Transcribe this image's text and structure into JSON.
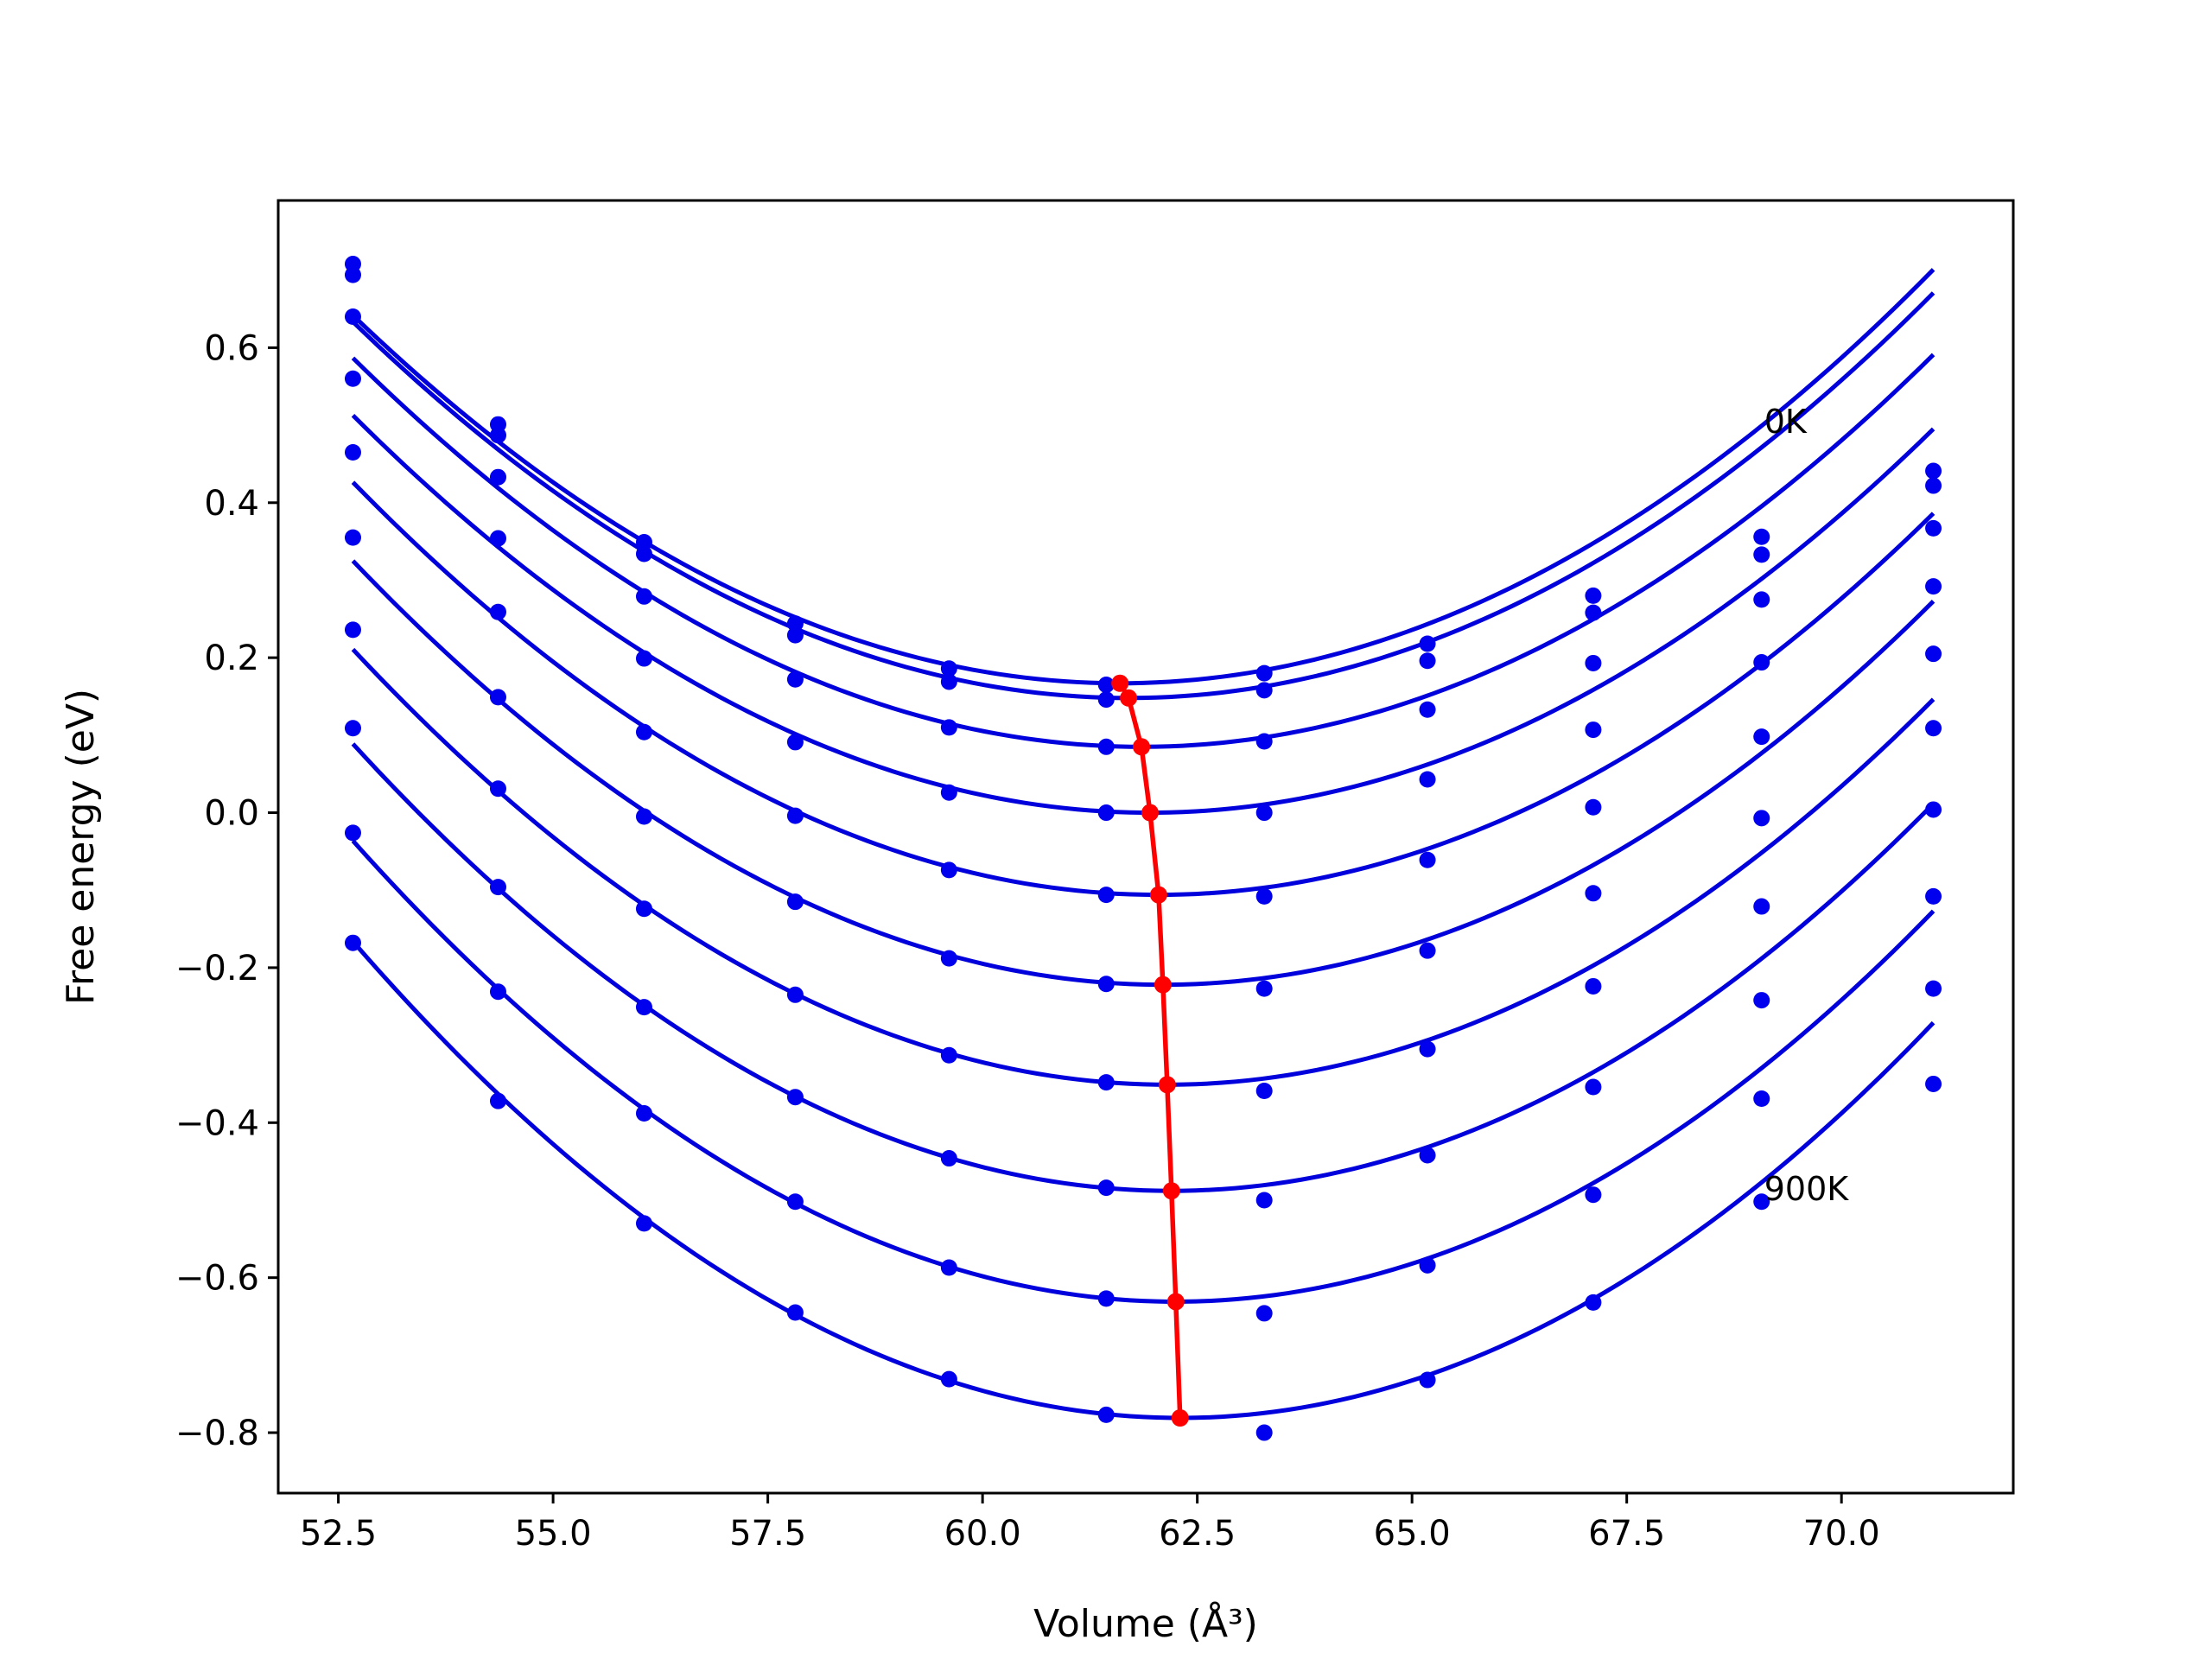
{
  "chart_data": {
    "type": "line",
    "xlabel": "Volume (Å³)",
    "ylabel": "Free energy (eV)",
    "xlim": [
      51.8,
      72.0
    ],
    "ylim": [
      -0.878,
      0.79
    ],
    "xticks": [
      52.5,
      55.0,
      57.5,
      60.0,
      62.5,
      65.0,
      67.5,
      70.0
    ],
    "xtick_labels": [
      "52.5",
      "55.0",
      "57.5",
      "60.0",
      "62.5",
      "65.0",
      "67.5",
      "70.0"
    ],
    "yticks": [
      0.6,
      0.4,
      0.2,
      0.0,
      -0.2,
      -0.4,
      -0.6,
      -0.8
    ],
    "ytick_labels": [
      "0.6",
      "0.4",
      "0.2",
      "0.0",
      "−0.2",
      "−0.4",
      "−0.6",
      "−0.8"
    ],
    "grid": false,
    "annotations": [
      {
        "text": "0K",
        "x": 69.1,
        "y": 0.49
      },
      {
        "text": "900K",
        "x": 69.1,
        "y": -0.5
      }
    ],
    "volumes": [
      52.67,
      54.36,
      56.06,
      57.82,
      59.61,
      61.44,
      63.28,
      65.18,
      67.11,
      69.07,
      71.07
    ],
    "color_fit": "#0000dd",
    "color_points": "#0000ee",
    "color_minimum": "#ff0000",
    "series": [
      {
        "points": [
          0.708,
          0.501,
          0.349,
          0.244,
          0.186,
          0.165,
          0.18,
          0.218,
          0.28,
          0.356,
          0.441
        ],
        "fit": {
          "a": 0.005953,
          "v0": 61.6,
          "e0": 0.167
        }
      },
      {
        "points": [
          0.694,
          0.487,
          0.334,
          0.229,
          0.169,
          0.146,
          0.158,
          0.196,
          0.258,
          0.333,
          0.422
        ],
        "fit": {
          "a": 0.005953,
          "v0": 61.7,
          "e0": 0.148
        }
      },
      {
        "points": [
          0.64,
          0.433,
          0.279,
          0.172,
          0.11,
          0.085,
          0.092,
          0.133,
          0.193,
          0.275,
          0.367
        ],
        "fit": {
          "a": 0.005953,
          "v0": 61.85,
          "e0": 0.085
        }
      },
      {
        "points": [
          0.56,
          0.354,
          0.199,
          0.091,
          0.026,
          0.0,
          0.0,
          0.043,
          0.107,
          0.194,
          0.292
        ],
        "fit": {
          "a": 0.005953,
          "v0": 61.95,
          "e0": 0.0
        }
      },
      {
        "points": [
          0.465,
          0.259,
          0.104,
          -0.004,
          -0.074,
          -0.106,
          -0.108,
          -0.061,
          0.007,
          0.098,
          0.205
        ],
        "fit": {
          "a": 0.00605,
          "v0": 62.05,
          "e0": -0.106
        }
      },
      {
        "points": [
          0.355,
          0.149,
          -0.005,
          -0.115,
          -0.188,
          -0.221,
          -0.227,
          -0.178,
          -0.104,
          -0.007,
          0.109
        ],
        "fit": {
          "a": 0.00615,
          "v0": 62.1,
          "e0": -0.222
        }
      },
      {
        "points": [
          0.236,
          0.031,
          -0.124,
          -0.235,
          -0.313,
          -0.348,
          -0.359,
          -0.305,
          -0.224,
          -0.121,
          0.004
        ],
        "fit": {
          "a": 0.00625,
          "v0": 62.15,
          "e0": -0.351
        }
      },
      {
        "points": [
          0.109,
          -0.096,
          -0.251,
          -0.367,
          -0.446,
          -0.484,
          -0.5,
          -0.442,
          -0.354,
          -0.242,
          -0.108
        ],
        "fit": {
          "a": 0.00635,
          "v0": 62.2,
          "e0": -0.488
        }
      },
      {
        "points": [
          -0.026,
          -0.231,
          -0.388,
          -0.502,
          -0.587,
          -0.627,
          -0.646,
          -0.584,
          -0.493,
          -0.369,
          -0.227
        ],
        "fit": {
          "a": 0.00648,
          "v0": 62.25,
          "e0": -0.631
        }
      },
      {
        "points": [
          -0.168,
          -0.372,
          -0.53,
          -0.645,
          -0.731,
          -0.777,
          -0.8,
          -0.732,
          -0.632,
          -0.502,
          -0.35
        ],
        "fit": {
          "a": 0.00663,
          "v0": 62.3,
          "e0": -0.781
        }
      }
    ],
    "minimum_curve": {
      "x": [
        61.6,
        61.7,
        61.85,
        61.95,
        62.05,
        62.1,
        62.15,
        62.2,
        62.25,
        62.3
      ],
      "y": [
        0.167,
        0.148,
        0.085,
        0.0,
        -0.106,
        -0.222,
        -0.351,
        -0.488,
        -0.631,
        -0.781
      ]
    }
  }
}
